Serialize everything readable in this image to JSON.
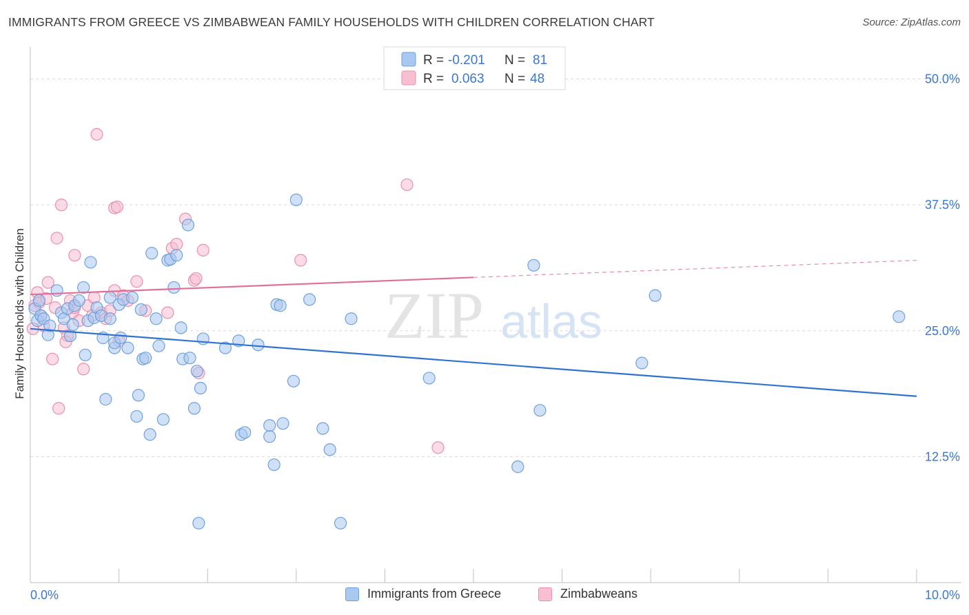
{
  "title": "IMMIGRANTS FROM GREECE VS ZIMBABWEAN FAMILY HOUSEHOLDS WITH CHILDREN CORRELATION CHART",
  "source": "Source: ZipAtlas.com",
  "watermark": {
    "zip": "ZIP",
    "atlas": "atlas"
  },
  "colors": {
    "blue_fill": "#a9c8f0",
    "blue_stroke": "#6fa0dc",
    "blue_line": "#2f72d0",
    "pink_fill": "#f7bfd1",
    "pink_stroke": "#e890ad",
    "pink_line": "#e0709a",
    "axis_label": "#3a78d0",
    "grid": "#d9d9d9"
  },
  "legend_top": {
    "rows": [
      {
        "r_label": "R =",
        "r_value": "-0.201",
        "n_label": "N =",
        "n_value": "81",
        "series": "blue"
      },
      {
        "r_label": "R =",
        "r_value": "0.063",
        "n_label": "N =",
        "n_value": "48",
        "series": "pink"
      }
    ]
  },
  "legend_bottom": {
    "items": [
      {
        "label": "Immigrants from Greece",
        "series": "blue"
      },
      {
        "label": "Zimbabweans",
        "series": "pink"
      }
    ]
  },
  "chart_data": {
    "type": "scatter",
    "title": "IMMIGRANTS FROM GREECE VS ZIMBABWEAN FAMILY HOUSEHOLDS WITH CHILDREN CORRELATION CHART",
    "xlabel": "",
    "ylabel": "Family Households with Children",
    "xlim": [
      0,
      10
    ],
    "ylim": [
      0,
      52.5
    ],
    "x_tick_labels": [
      {
        "value": 0,
        "label": "0.0%"
      },
      {
        "value": 10,
        "label": "10.0%"
      }
    ],
    "y_tick_labels": [
      {
        "value": 12.5,
        "label": "12.5%"
      },
      {
        "value": 25,
        "label": "25.0%"
      },
      {
        "value": 37.5,
        "label": "37.5%"
      },
      {
        "value": 50,
        "label": "50.0%"
      }
    ],
    "grid": true,
    "series": [
      {
        "name": "Immigrants from Greece",
        "color": "blue",
        "r": -0.201,
        "n": 81,
        "trend": {
          "x0": 0,
          "y0": 25.2,
          "x1": 10,
          "y1": 18.5,
          "dashed_from": null
        },
        "points": [
          [
            0.05,
            27.2
          ],
          [
            0.08,
            26.0
          ],
          [
            0.1,
            28.0
          ],
          [
            0.12,
            26.5
          ],
          [
            0.15,
            26.2
          ],
          [
            0.2,
            24.6
          ],
          [
            0.22,
            25.5
          ],
          [
            0.3,
            29.0
          ],
          [
            0.35,
            26.8
          ],
          [
            0.38,
            26.2
          ],
          [
            0.42,
            27.2
          ],
          [
            0.45,
            24.5
          ],
          [
            0.5,
            27.5
          ],
          [
            0.55,
            28.0
          ],
          [
            0.6,
            29.3
          ],
          [
            0.62,
            22.6
          ],
          [
            0.65,
            26.0
          ],
          [
            0.68,
            31.8
          ],
          [
            0.72,
            26.3
          ],
          [
            0.75,
            27.3
          ],
          [
            0.8,
            26.5
          ],
          [
            0.82,
            24.3
          ],
          [
            0.85,
            18.2
          ],
          [
            0.9,
            26.2
          ],
          [
            0.9,
            28.3
          ],
          [
            0.95,
            23.3
          ],
          [
            0.95,
            23.8
          ],
          [
            1.0,
            27.6
          ],
          [
            1.02,
            24.3
          ],
          [
            1.05,
            28.1
          ],
          [
            1.1,
            23.3
          ],
          [
            1.15,
            28.3
          ],
          [
            1.2,
            16.5
          ],
          [
            1.22,
            18.6
          ],
          [
            1.25,
            27.1
          ],
          [
            1.27,
            22.2
          ],
          [
            1.3,
            22.3
          ],
          [
            1.35,
            14.7
          ],
          [
            1.37,
            32.7
          ],
          [
            1.42,
            26.2
          ],
          [
            1.45,
            23.5
          ],
          [
            1.5,
            16.2
          ],
          [
            1.55,
            32.0
          ],
          [
            1.58,
            32.1
          ],
          [
            1.62,
            29.3
          ],
          [
            1.65,
            32.5
          ],
          [
            1.7,
            25.3
          ],
          [
            1.72,
            22.2
          ],
          [
            1.78,
            35.5
          ],
          [
            1.8,
            22.3
          ],
          [
            1.85,
            17.3
          ],
          [
            1.88,
            21.0
          ],
          [
            1.92,
            19.3
          ],
          [
            1.95,
            24.2
          ],
          [
            2.2,
            23.3
          ],
          [
            2.35,
            24.0
          ],
          [
            2.38,
            14.7
          ],
          [
            2.42,
            14.9
          ],
          [
            2.57,
            23.6
          ],
          [
            2.7,
            15.6
          ],
          [
            2.7,
            14.5
          ],
          [
            2.75,
            11.7
          ],
          [
            2.78,
            27.6
          ],
          [
            2.82,
            27.5
          ],
          [
            2.85,
            15.8
          ],
          [
            2.97,
            20.0
          ],
          [
            3.0,
            38.0
          ],
          [
            3.15,
            28.1
          ],
          [
            3.3,
            15.3
          ],
          [
            3.38,
            13.2
          ],
          [
            3.62,
            26.2
          ],
          [
            4.5,
            20.3
          ],
          [
            5.5,
            11.5
          ],
          [
            5.68,
            31.5
          ],
          [
            5.75,
            17.1
          ],
          [
            6.9,
            21.8
          ],
          [
            7.05,
            28.5
          ],
          [
            9.8,
            26.4
          ],
          [
            3.5,
            5.9
          ],
          [
            1.9,
            5.9
          ],
          [
            0.48,
            25.6
          ]
        ]
      },
      {
        "name": "Zimbabweans",
        "color": "pink",
        "r": 0.063,
        "n": 48,
        "trend": {
          "x0": 0,
          "y0": 28.6,
          "x1": 10,
          "y1": 32.0,
          "dashed_from": 5.0
        },
        "points": [
          [
            0.03,
            25.2
          ],
          [
            0.05,
            27.5
          ],
          [
            0.08,
            28.8
          ],
          [
            0.1,
            27.8
          ],
          [
            0.12,
            26.5
          ],
          [
            0.15,
            25.5
          ],
          [
            0.18,
            28.2
          ],
          [
            0.2,
            29.8
          ],
          [
            0.25,
            22.2
          ],
          [
            0.28,
            27.3
          ],
          [
            0.3,
            34.2
          ],
          [
            0.32,
            17.3
          ],
          [
            0.35,
            37.5
          ],
          [
            0.38,
            25.3
          ],
          [
            0.42,
            24.5
          ],
          [
            0.45,
            28.0
          ],
          [
            0.48,
            26.8
          ],
          [
            0.5,
            27.3
          ],
          [
            0.5,
            32.5
          ],
          [
            0.55,
            26.0
          ],
          [
            0.6,
            21.2
          ],
          [
            0.65,
            27.5
          ],
          [
            0.7,
            26.5
          ],
          [
            0.72,
            28.3
          ],
          [
            0.75,
            44.5
          ],
          [
            0.8,
            26.8
          ],
          [
            0.85,
            26.2
          ],
          [
            0.9,
            27.0
          ],
          [
            0.95,
            29.0
          ],
          [
            0.95,
            37.2
          ],
          [
            0.98,
            37.3
          ],
          [
            1.0,
            24.0
          ],
          [
            1.05,
            28.5
          ],
          [
            1.1,
            28.0
          ],
          [
            1.2,
            29.9
          ],
          [
            1.3,
            27.0
          ],
          [
            1.55,
            26.8
          ],
          [
            1.6,
            33.2
          ],
          [
            1.65,
            33.6
          ],
          [
            1.75,
            36.1
          ],
          [
            1.85,
            30.0
          ],
          [
            1.87,
            30.2
          ],
          [
            1.9,
            20.8
          ],
          [
            1.95,
            33.0
          ],
          [
            3.05,
            32.0
          ],
          [
            4.25,
            39.5
          ],
          [
            4.6,
            13.4
          ],
          [
            0.4,
            23.9
          ]
        ]
      }
    ]
  }
}
